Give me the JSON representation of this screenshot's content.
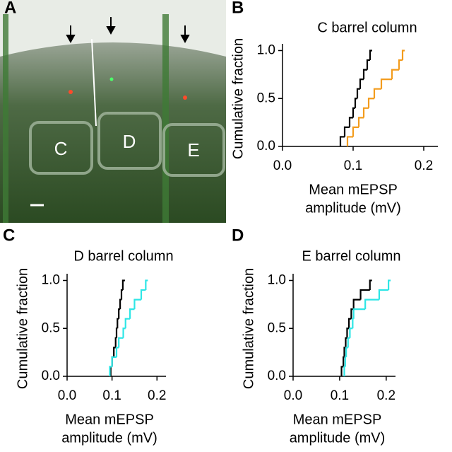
{
  "panel_labels": [
    "A",
    "B",
    "C",
    "D"
  ],
  "image": {
    "barrel_labels": [
      "C",
      "D",
      "E"
    ]
  },
  "chart_data": [
    {
      "type": "step",
      "title": "C barrel column",
      "xlabel": [
        "Mean mEPSP",
        "amplitude (mV)"
      ],
      "ylabel": "Cumulative fraction",
      "xlim": [
        0,
        0.22
      ],
      "ylim": [
        0,
        1.07
      ],
      "xticks": [
        {
          "value": 0,
          "label": "0.0"
        },
        {
          "value": 0.1,
          "label": "0.1"
        },
        {
          "value": 0.2,
          "label": "0.2"
        }
      ],
      "yticks": [
        {
          "value": 0,
          "label": "0.0"
        },
        {
          "value": 0.5,
          "label": "0.5"
        },
        {
          "value": 1,
          "label": "1.0"
        }
      ],
      "series": [
        {
          "color": "#000000",
          "x": [
            0.082,
            0.088,
            0.095,
            0.1,
            0.103,
            0.106,
            0.11,
            0.115,
            0.12,
            0.124
          ],
          "values": [
            0.1,
            0.2,
            0.3,
            0.4,
            0.5,
            0.6,
            0.7,
            0.8,
            0.9,
            1.0
          ]
        },
        {
          "color": "#f39c1d",
          "x": [
            0.092,
            0.1,
            0.108,
            0.115,
            0.122,
            0.13,
            0.14,
            0.155,
            0.165,
            0.17
          ],
          "values": [
            0.1,
            0.2,
            0.3,
            0.4,
            0.5,
            0.6,
            0.7,
            0.8,
            0.9,
            1.0
          ]
        }
      ]
    },
    {
      "type": "step",
      "title": "D barrel column",
      "xlabel": [
        "Mean mEPSP",
        "amplitude (mV)"
      ],
      "ylabel": "Cumulative fraction",
      "xlim": [
        0,
        0.22
      ],
      "ylim": [
        0,
        1.07
      ],
      "xticks": [
        {
          "value": 0,
          "label": "0.0"
        },
        {
          "value": 0.1,
          "label": "0.1"
        },
        {
          "value": 0.2,
          "label": "0.2"
        }
      ],
      "yticks": [
        {
          "value": 0,
          "label": "0.0"
        },
        {
          "value": 0.5,
          "label": "0.5"
        },
        {
          "value": 1,
          "label": "1.0"
        }
      ],
      "series": [
        {
          "color": "#000000",
          "x": [
            0.097,
            0.1,
            0.104,
            0.108,
            0.11,
            0.112,
            0.115,
            0.118,
            0.121,
            0.124
          ],
          "values": [
            0.1,
            0.2,
            0.3,
            0.4,
            0.5,
            0.6,
            0.7,
            0.8,
            0.9,
            1.0
          ]
        },
        {
          "color": "#2ee6e6",
          "x": [
            0.095,
            0.1,
            0.11,
            0.115,
            0.125,
            0.13,
            0.14,
            0.15,
            0.165,
            0.175
          ],
          "values": [
            0.1,
            0.2,
            0.3,
            0.4,
            0.5,
            0.6,
            0.7,
            0.8,
            0.9,
            1.0
          ]
        }
      ]
    },
    {
      "type": "step",
      "title": "E barrel column",
      "xlabel": [
        "Mean mEPSP",
        "amplitude (mV)"
      ],
      "ylabel": "Cumulative fraction",
      "xlim": [
        0,
        0.22
      ],
      "ylim": [
        0,
        1.07
      ],
      "xticks": [
        {
          "value": 0,
          "label": "0.0"
        },
        {
          "value": 0.1,
          "label": "0.1"
        },
        {
          "value": 0.2,
          "label": "0.2"
        }
      ],
      "yticks": [
        {
          "value": 0,
          "label": "0.0"
        },
        {
          "value": 0.5,
          "label": "0.5"
        },
        {
          "value": 1,
          "label": "1.0"
        }
      ],
      "series": [
        {
          "color": "#000000",
          "x": [
            0.104,
            0.108,
            0.11,
            0.113,
            0.116,
            0.12,
            0.125,
            0.13,
            0.145,
            0.165
          ],
          "values": [
            0.1,
            0.2,
            0.3,
            0.4,
            0.5,
            0.6,
            0.7,
            0.8,
            0.9,
            1.0
          ]
        },
        {
          "color": "#2ee6e6",
          "x": [
            0.11,
            0.112,
            0.114,
            0.118,
            0.122,
            0.128,
            0.13,
            0.155,
            0.185,
            0.205
          ],
          "values": [
            0.1,
            0.2,
            0.3,
            0.4,
            0.5,
            0.6,
            0.7,
            0.8,
            0.9,
            1.0
          ]
        }
      ]
    }
  ]
}
